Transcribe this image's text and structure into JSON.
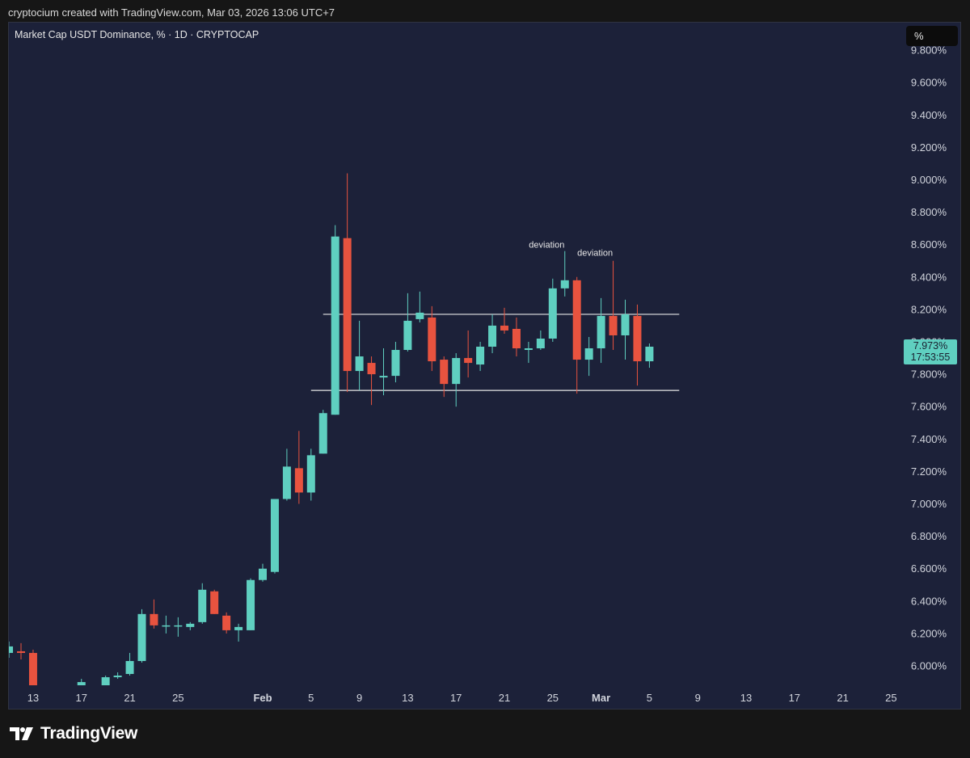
{
  "header": {
    "attribution": "cryptocium created with TradingView.com, Mar 03, 2026 13:06 UTC+7"
  },
  "chart": {
    "symbol_title": "Market Cap USDT Dominance, % · 1D · CRYPTOCAP",
    "unit_button": "%"
  },
  "last_price": {
    "value": "7.973%",
    "countdown": "17:53:55"
  },
  "footer": {
    "logo_text": "TradingView"
  },
  "colors": {
    "background": "#1c2139",
    "up": "#5fcfc0",
    "down": "#e8533f",
    "range_line": "#e6e6e6"
  },
  "chart_data": {
    "type": "candlestick",
    "title": "Market Cap USDT Dominance, % · 1D · CRYPTOCAP",
    "y_unit": "%",
    "y_ticks": [
      "6.000%",
      "6.200%",
      "6.400%",
      "6.600%",
      "6.800%",
      "7.000%",
      "7.200%",
      "7.400%",
      "7.600%",
      "7.800%",
      "8.000%",
      "8.200%",
      "8.400%",
      "8.600%",
      "8.800%",
      "9.000%",
      "9.200%",
      "9.400%",
      "9.600%",
      "9.800%"
    ],
    "y_tick_values": [
      6.0,
      6.2,
      6.4,
      6.6,
      6.8,
      7.0,
      7.2,
      7.4,
      7.6,
      7.8,
      8.0,
      8.2,
      8.4,
      8.6,
      8.8,
      9.0,
      9.2,
      9.4,
      9.6,
      9.8
    ],
    "ylim": [
      5.88,
      9.89
    ],
    "x_ticks": [
      "13",
      "17",
      "21",
      "25",
      "Feb",
      "5",
      "9",
      "13",
      "17",
      "21",
      "25",
      "Mar",
      "5",
      "9",
      "13",
      "17",
      "21",
      "25"
    ],
    "x_tick_days": [
      -19,
      -15,
      -11,
      -7,
      0,
      4,
      8,
      12,
      16,
      20,
      24,
      28,
      32,
      36,
      40,
      44,
      48,
      52
    ],
    "x_tick_bold": [
      false,
      false,
      false,
      false,
      true,
      false,
      false,
      false,
      false,
      false,
      false,
      true,
      false,
      false,
      false,
      false,
      false,
      false
    ],
    "x_range_days": [
      -21,
      54
    ],
    "x_axis_note": "day offsets relative to Feb 1, 2026",
    "range_lines": [
      {
        "value": 8.17,
        "start_day": 5,
        "end_day": 34
      },
      {
        "value": 7.7,
        "start_day": 4,
        "end_day": 34
      }
    ],
    "annotations": [
      {
        "text": "deviation",
        "day": 23.5,
        "value": 8.58
      },
      {
        "text": "deviation",
        "day": 27.5,
        "value": 8.53
      }
    ],
    "candles": [
      {
        "day": -21,
        "o": 6.08,
        "h": 6.15,
        "l": 6.05,
        "c": 6.12
      },
      {
        "day": -20,
        "o": 6.09,
        "h": 6.14,
        "l": 6.04,
        "c": 6.08
      },
      {
        "day": -19,
        "o": 6.08,
        "h": 6.1,
        "l": 5.88,
        "c": 5.88
      },
      {
        "day": -15,
        "o": 5.88,
        "h": 5.92,
        "l": 5.88,
        "c": 5.9
      },
      {
        "day": -13,
        "o": 5.88,
        "h": 5.94,
        "l": 5.88,
        "c": 5.93
      },
      {
        "day": -12,
        "o": 5.93,
        "h": 5.96,
        "l": 5.92,
        "c": 5.94
      },
      {
        "day": -11,
        "o": 5.95,
        "h": 6.08,
        "l": 5.94,
        "c": 6.03
      },
      {
        "day": -10,
        "o": 6.03,
        "h": 6.35,
        "l": 6.02,
        "c": 6.32
      },
      {
        "day": -9,
        "o": 6.32,
        "h": 6.41,
        "l": 6.23,
        "c": 6.25
      },
      {
        "day": -8,
        "o": 6.25,
        "h": 6.31,
        "l": 6.2,
        "c": 6.25
      },
      {
        "day": -7,
        "o": 6.25,
        "h": 6.3,
        "l": 6.18,
        "c": 6.25
      },
      {
        "day": -6,
        "o": 6.24,
        "h": 6.27,
        "l": 6.22,
        "c": 6.26
      },
      {
        "day": -5,
        "o": 6.27,
        "h": 6.51,
        "l": 6.26,
        "c": 6.47
      },
      {
        "day": -4,
        "o": 6.46,
        "h": 6.47,
        "l": 6.32,
        "c": 6.32
      },
      {
        "day": -3,
        "o": 6.31,
        "h": 6.33,
        "l": 6.2,
        "c": 6.22
      },
      {
        "day": -2,
        "o": 6.22,
        "h": 6.26,
        "l": 6.15,
        "c": 6.24
      },
      {
        "day": -1,
        "o": 6.22,
        "h": 6.54,
        "l": 6.22,
        "c": 6.53
      },
      {
        "day": 0,
        "o": 6.53,
        "h": 6.63,
        "l": 6.52,
        "c": 6.6
      },
      {
        "day": 1,
        "o": 6.58,
        "h": 7.03,
        "l": 6.57,
        "c": 7.03
      },
      {
        "day": 2,
        "o": 7.03,
        "h": 7.34,
        "l": 7.02,
        "c": 7.23
      },
      {
        "day": 3,
        "o": 7.22,
        "h": 7.45,
        "l": 7.0,
        "c": 7.07
      },
      {
        "day": 4,
        "o": 7.07,
        "h": 7.34,
        "l": 7.02,
        "c": 7.3
      },
      {
        "day": 5,
        "o": 7.31,
        "h": 7.58,
        "l": 7.31,
        "c": 7.56
      },
      {
        "day": 6,
        "o": 7.55,
        "h": 8.72,
        "l": 7.55,
        "c": 8.65
      },
      {
        "day": 7,
        "o": 8.64,
        "h": 9.04,
        "l": 7.69,
        "c": 7.82
      },
      {
        "day": 8,
        "o": 7.82,
        "h": 8.13,
        "l": 7.7,
        "c": 7.91
      },
      {
        "day": 9,
        "o": 7.87,
        "h": 7.91,
        "l": 7.61,
        "c": 7.8
      },
      {
        "day": 10,
        "o": 7.78,
        "h": 7.96,
        "l": 7.67,
        "c": 7.79
      },
      {
        "day": 11,
        "o": 7.79,
        "h": 8.0,
        "l": 7.75,
        "c": 7.95
      },
      {
        "day": 12,
        "o": 7.95,
        "h": 8.3,
        "l": 7.94,
        "c": 8.13
      },
      {
        "day": 13,
        "o": 8.14,
        "h": 8.31,
        "l": 8.12,
        "c": 8.18
      },
      {
        "day": 14,
        "o": 8.15,
        "h": 8.22,
        "l": 7.82,
        "c": 7.88
      },
      {
        "day": 15,
        "o": 7.89,
        "h": 7.91,
        "l": 7.66,
        "c": 7.74
      },
      {
        "day": 16,
        "o": 7.74,
        "h": 7.93,
        "l": 7.6,
        "c": 7.9
      },
      {
        "day": 17,
        "o": 7.9,
        "h": 8.07,
        "l": 7.78,
        "c": 7.87
      },
      {
        "day": 18,
        "o": 7.86,
        "h": 8.0,
        "l": 7.82,
        "c": 7.97
      },
      {
        "day": 19,
        "o": 7.97,
        "h": 8.17,
        "l": 7.93,
        "c": 8.1
      },
      {
        "day": 20,
        "o": 8.1,
        "h": 8.21,
        "l": 8.05,
        "c": 8.07
      },
      {
        "day": 21,
        "o": 8.08,
        "h": 8.15,
        "l": 7.91,
        "c": 7.96
      },
      {
        "day": 22,
        "o": 7.95,
        "h": 8.0,
        "l": 7.87,
        "c": 7.96
      },
      {
        "day": 23,
        "o": 7.96,
        "h": 8.07,
        "l": 7.95,
        "c": 8.02
      },
      {
        "day": 24,
        "o": 8.02,
        "h": 8.39,
        "l": 8.0,
        "c": 8.33
      },
      {
        "day": 25,
        "o": 8.33,
        "h": 8.56,
        "l": 8.28,
        "c": 8.38
      },
      {
        "day": 26,
        "o": 8.38,
        "h": 8.4,
        "l": 7.68,
        "c": 7.89
      },
      {
        "day": 27,
        "o": 7.89,
        "h": 8.03,
        "l": 7.79,
        "c": 7.96
      },
      {
        "day": 28,
        "o": 7.96,
        "h": 8.27,
        "l": 7.87,
        "c": 8.16
      },
      {
        "day": 29,
        "o": 8.16,
        "h": 8.5,
        "l": 7.95,
        "c": 8.04
      },
      {
        "day": 30,
        "o": 8.04,
        "h": 8.26,
        "l": 7.89,
        "c": 8.17
      },
      {
        "day": 31,
        "o": 8.16,
        "h": 8.23,
        "l": 7.73,
        "c": 7.88
      },
      {
        "day": 32,
        "o": 7.88,
        "h": 7.99,
        "l": 7.84,
        "c": 7.97
      }
    ]
  }
}
